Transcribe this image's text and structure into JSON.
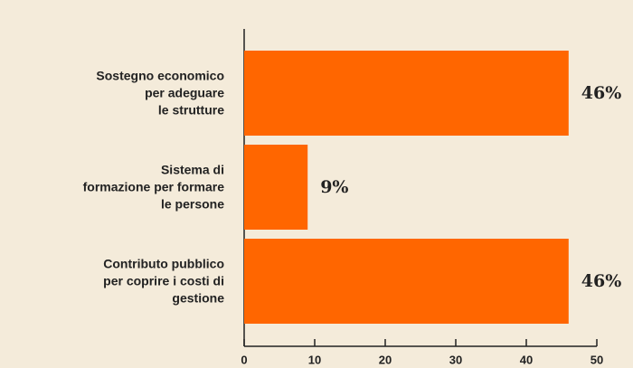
{
  "chart_data": {
    "type": "bar",
    "orientation": "horizontal",
    "categories": [
      "Sostegno economico\nper adeguare\nle strutture",
      "Sistema di\nformazione per formare\nle persone",
      "Contributo pubblico\nper coprire i costi di\ngestione"
    ],
    "values": [
      46,
      9,
      46
    ],
    "value_labels": [
      "46%",
      "9%",
      "46%"
    ],
    "color": "#ff6600",
    "xlim": [
      0,
      50
    ],
    "xticks": [
      0,
      10,
      20,
      30,
      40,
      50
    ],
    "grid": false
  }
}
